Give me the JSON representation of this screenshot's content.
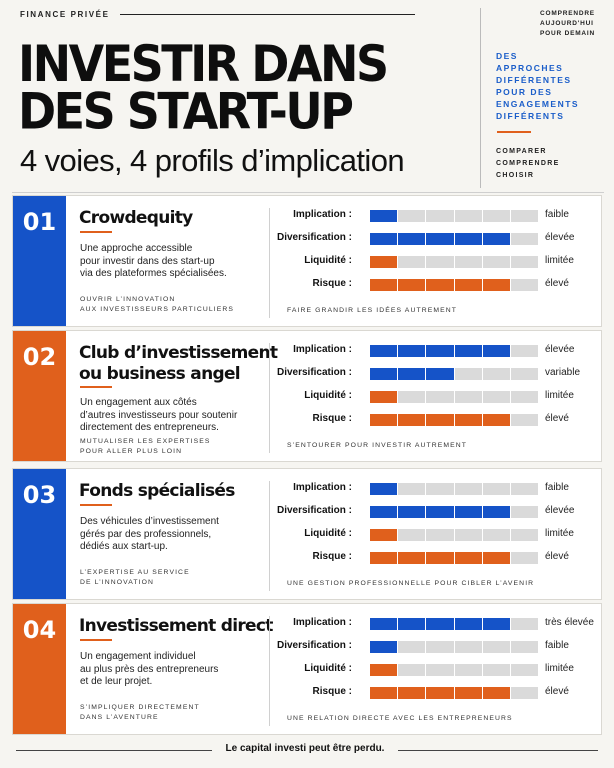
{
  "header": {
    "kicker": "FINANCE PRIVÉE",
    "title_line1": "INVESTIR DANS",
    "title_line2": "DES START-UP",
    "subtitle": "4 voies, 4 profils d’implication"
  },
  "sidebar": {
    "tagline": [
      "COMPRENDRE",
      "AUJOURD'HUI",
      "POUR DEMAIN"
    ],
    "approaches": [
      "DES",
      "APPROCHES",
      "DIFFÉRENTES",
      "POUR DES",
      "ENGAGEMENTS",
      "DIFFÉRENTS"
    ],
    "verbs": [
      "COMPARER",
      "COMPRENDRE",
      "CHOISIR"
    ]
  },
  "colors": {
    "blue": "#1553c8",
    "orange": "#e0601c"
  },
  "cards": [
    {
      "number": "01",
      "color": "blue",
      "title": [
        "Crowdequity"
      ],
      "description": [
        "Une approche accessible",
        "pour investir dans des start-up",
        "via des plateformes spécialisées."
      ],
      "tag": [
        "OUVRIR L’INNOVATION",
        "AUX INVESTISSEURS PARTICULIERS"
      ],
      "footer": "FAIRE GRANDIR LES IDÉES AUTREMENT",
      "metrics": [
        {
          "label": "Implication :",
          "level": 1,
          "max": 6,
          "value": "faible",
          "color": "blue"
        },
        {
          "label": "Diversification :",
          "level": 5,
          "max": 6,
          "value": "élevée",
          "color": "blue"
        },
        {
          "label": "Liquidité :",
          "level": 1,
          "max": 6,
          "value": "limitée",
          "color": "orange"
        },
        {
          "label": "Risque :",
          "level": 5,
          "max": 6,
          "value": "élevé",
          "color": "orange"
        }
      ]
    },
    {
      "number": "02",
      "color": "orange",
      "title": [
        "Club d’investissement",
        "ou business angel"
      ],
      "description": [
        "Un engagement aux côtés",
        "d’autres investisseurs pour soutenir",
        "directement des entrepreneurs."
      ],
      "tag": [
        "MUTUALISER LES EXPERTISES",
        "POUR ALLER PLUS LOIN"
      ],
      "footer": "S’ENTOURER POUR INVESTIR AUTREMENT",
      "metrics": [
        {
          "label": "Implication :",
          "level": 5,
          "max": 6,
          "value": "élevée",
          "color": "blue"
        },
        {
          "label": "Diversification :",
          "level": 3,
          "max": 6,
          "value": "variable",
          "color": "blue"
        },
        {
          "label": "Liquidité :",
          "level": 1,
          "max": 6,
          "value": "limitée",
          "color": "orange"
        },
        {
          "label": "Risque :",
          "level": 5,
          "max": 6,
          "value": "élevé",
          "color": "orange"
        }
      ]
    },
    {
      "number": "03",
      "color": "blue",
      "title": [
        "Fonds spécialisés"
      ],
      "description": [
        "Des véhicules d’investissement",
        "gérés par des professionnels,",
        "dédiés aux start-up."
      ],
      "tag": [
        "L’EXPERTISE AU SERVICE",
        "DE L’INNOVATION"
      ],
      "footer": "UNE GESTION PROFESSIONNELLE POUR CIBLER L’AVENIR",
      "metrics": [
        {
          "label": "Implication :",
          "level": 1,
          "max": 6,
          "value": "faible",
          "color": "blue"
        },
        {
          "label": "Diversification :",
          "level": 5,
          "max": 6,
          "value": "élevée",
          "color": "blue"
        },
        {
          "label": "Liquidité :",
          "level": 1,
          "max": 6,
          "value": "limitée",
          "color": "orange"
        },
        {
          "label": "Risque :",
          "level": 5,
          "max": 6,
          "value": "élevé",
          "color": "orange"
        }
      ]
    },
    {
      "number": "04",
      "color": "orange",
      "title": [
        "Investissement direct"
      ],
      "description": [
        "Un engagement individuel",
        "au plus près des entrepreneurs",
        "et de leur projet."
      ],
      "tag": [
        "S’IMPLIQUER DIRECTEMENT",
        "DANS L’AVENTURE"
      ],
      "footer": "UNE RELATION DIRECTE AVEC LES ENTREPRENEURS",
      "metrics": [
        {
          "label": "Implication :",
          "level": 5,
          "max": 6,
          "value": "très élevée",
          "color": "blue"
        },
        {
          "label": "Diversification :",
          "level": 1,
          "max": 6,
          "value": "faible",
          "color": "blue"
        },
        {
          "label": "Liquidité :",
          "level": 1,
          "max": 6,
          "value": "limitée",
          "color": "orange"
        },
        {
          "label": "Risque :",
          "level": 5,
          "max": 6,
          "value": "élevé",
          "color": "orange"
        }
      ]
    }
  ],
  "footer": {
    "disclaimer": "Le capital investi peut être perdu."
  }
}
